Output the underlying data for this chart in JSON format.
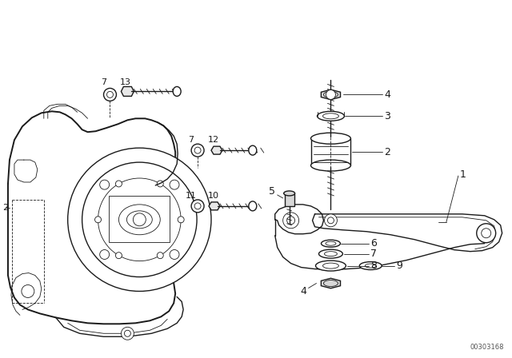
{
  "bg_color": "#ffffff",
  "line_color": "#1a1a1a",
  "watermark": "00303168",
  "fig_width": 6.4,
  "fig_height": 4.48,
  "dpi": 100,
  "lw_main": 1.0,
  "lw_thin": 0.6,
  "lw_thick": 1.4,
  "label_fs": 8,
  "note_color": "#333333"
}
